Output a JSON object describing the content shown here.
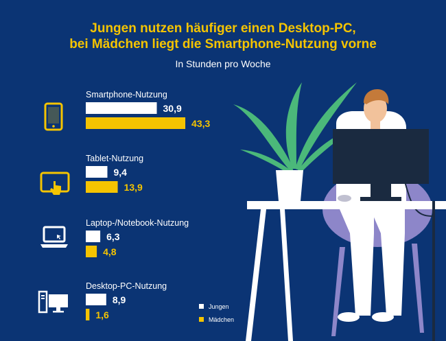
{
  "title_line1": "Jungen nutzen häufiger einen Desktop-PC,",
  "title_line2": "bei Mädchen liegt die Smartphone-Nutzung vorne",
  "subtitle": "In Stunden pro Woche",
  "colors": {
    "background": "#0b3474",
    "jungen": "#ffffff",
    "maedchen": "#f5c400"
  },
  "chart_data": {
    "type": "bar",
    "orientation": "horizontal",
    "categories": [
      "Smartphone-Nutzung",
      "Tablet-Nutzung",
      "Laptop-/Notebook-Nutzung",
      "Desktop-PC-Nutzung"
    ],
    "category_icons": [
      "smartphone-icon",
      "tablet-icon",
      "laptop-icon",
      "desktop-pc-icon"
    ],
    "series": [
      {
        "name": "Jungen",
        "values": [
          30.9,
          9.4,
          6.3,
          8.9
        ],
        "labels": [
          "30,9",
          "9,4",
          "6,3",
          "8,9"
        ],
        "color": "#ffffff"
      },
      {
        "name": "Mädchen",
        "values": [
          43.3,
          13.9,
          4.8,
          1.6
        ],
        "labels": [
          "43,3",
          "13,9",
          "4,8",
          "1,6"
        ],
        "color": "#f5c400"
      }
    ],
    "title": "Jungen nutzen häufiger einen Desktop-PC, bei Mädchen liegt die Smartphone-Nutzung vorne",
    "subtitle": "In Stunden pro Woche",
    "legend_position": "bottom-center",
    "grid": false
  },
  "legend": [
    {
      "label": "Jungen",
      "color": "#ffffff"
    },
    {
      "label": "Mädchen",
      "color": "#f5c400"
    }
  ]
}
